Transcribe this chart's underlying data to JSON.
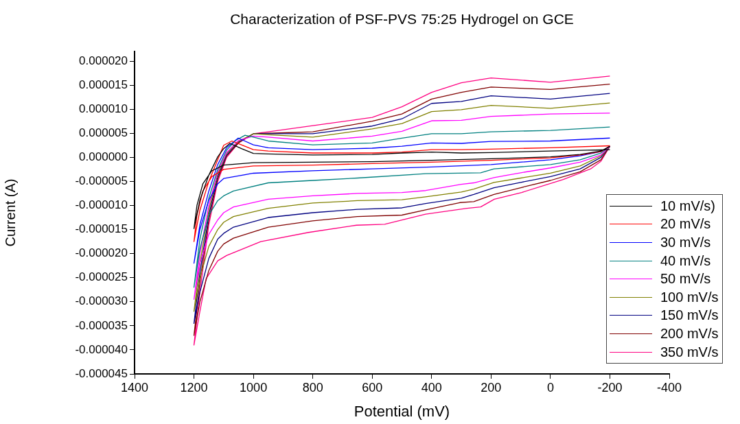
{
  "chart_data": {
    "type": "line",
    "title": "Characterization of PSF-PVS 75:25 Hydrogel on GCE",
    "xlabel": "Potential (mV)",
    "ylabel": "Current (A)",
    "xlim": [
      1400,
      -400
    ],
    "xticks": [
      1400,
      1200,
      1000,
      800,
      600,
      400,
      200,
      0,
      -200,
      -400
    ],
    "ylim": [
      -4.5e-05,
      2.2e-05
    ],
    "yticks": [
      {
        "value": 2e-05,
        "label": "0.000020"
      },
      {
        "value": 1.5e-05,
        "label": "0.000015"
      },
      {
        "value": 1e-05,
        "label": "0.000010"
      },
      {
        "value": 5e-06,
        "label": "0.000005"
      },
      {
        "value": 0,
        "label": "0.000000"
      },
      {
        "value": -5e-06,
        "label": "-0.000005"
      },
      {
        "value": -1e-05,
        "label": "-0.000010"
      },
      {
        "value": -1.5e-05,
        "label": "-0.000015"
      },
      {
        "value": -2e-05,
        "label": "-0.000020"
      },
      {
        "value": -2.5e-05,
        "label": "-0.000025"
      },
      {
        "value": -3e-05,
        "label": "-0.000030"
      },
      {
        "value": -3.5e-05,
        "label": "-0.000035"
      },
      {
        "value": -4e-05,
        "label": "-0.000040"
      },
      {
        "value": -4.5e-05,
        "label": "-0.000045"
      }
    ],
    "legend": "bottom right",
    "marker": "none",
    "line_style": "solid",
    "series": [
      {
        "name": "10 mV/s)",
        "color": "#000000",
        "x": [
          -200,
          0,
          200,
          300,
          400,
          500,
          600,
          800,
          950,
          1000,
          1040,
          1079,
          1100,
          1120,
          1150,
          1180,
          1200,
          1190,
          1170,
          1140,
          1100,
          1000,
          800,
          600,
          400,
          200,
          0,
          -100,
          -170,
          -200
        ],
        "values": [
          1.6e-06,
          1.3e-06,
          1e-06,
          9e-07,
          1.1e-06,
          9e-07,
          6e-07,
          5e-07,
          7e-07,
          8e-07,
          1.8e-06,
          2.9e-06,
          1.8e-06,
          1e-07,
          -3.7e-06,
          -8.9e-06,
          -1.48e-05,
          -1e-05,
          -5.5e-06,
          -2.8e-06,
          -1.6e-06,
          -1.1e-06,
          -1e-06,
          -9e-07,
          -6e-07,
          -3e-07,
          1e-07,
          6e-07,
          1.3e-06,
          2.3e-06
        ]
      },
      {
        "name": "20 mV/s",
        "color": "#ff0000",
        "x": [
          -200,
          0,
          200,
          300,
          400,
          500,
          600,
          800,
          950,
          1000,
          1040,
          1072,
          1100,
          1120,
          1150,
          1180,
          1200,
          1190,
          1170,
          1140,
          1100,
          1000,
          800,
          600,
          400,
          200,
          0,
          -100,
          -170,
          -200
        ],
        "values": [
          2.4e-06,
          2e-06,
          1.7e-06,
          1.6e-06,
          1.6e-06,
          1.1e-06,
          9e-07,
          9e-07,
          1.3e-06,
          1.6e-06,
          2.6e-06,
          3.4e-06,
          2.5e-06,
          -5e-07,
          -5e-06,
          -1.1e-05,
          -1.75e-05,
          -1.2e-05,
          -7e-06,
          -4e-06,
          -2.5e-06,
          -1.8e-06,
          -1.6e-06,
          -1.3e-06,
          -1e-06,
          -6e-07,
          -1e-07,
          5e-07,
          1.2e-06,
          2.3e-06
        ]
      },
      {
        "name": "30 mV/s",
        "color": "#0000ff",
        "x": [
          -200,
          0,
          200,
          300,
          400,
          500,
          600,
          800,
          950,
          1000,
          1051,
          1090,
          1120,
          1150,
          1180,
          1200,
          1180,
          1150,
          1120,
          1100,
          1000,
          800,
          600,
          400,
          200,
          0,
          -100,
          -170,
          -200
        ],
        "values": [
          4e-06,
          3.4e-06,
          3.3e-06,
          2.9e-06,
          3e-06,
          2.3e-06,
          1.9e-06,
          1.6e-06,
          2e-06,
          2.6e-06,
          4e-06,
          2e-06,
          -1.5e-06,
          -7e-06,
          -1.4e-05,
          -2.2e-05,
          -1.5e-05,
          -8.9e-06,
          -5.5e-06,
          -4.4e-06,
          -3.3e-06,
          -2.8e-06,
          -2.4e-06,
          -2e-06,
          -1.5e-06,
          -5e-07,
          3e-07,
          1.2e-06,
          2.3e-06
        ]
      },
      {
        "name": "40 mV/s",
        "color": "#008080",
        "x": [
          -200,
          0,
          200,
          300,
          400,
          500,
          600,
          800,
          950,
          1000,
          1028,
          1060,
          1090,
          1120,
          1150,
          1180,
          1200,
          1180,
          1150,
          1120,
          1100,
          1067,
          950,
          800,
          650,
          420,
          235,
          190,
          0,
          -100,
          -170,
          -200
        ],
        "values": [
          6.3e-06,
          5.6e-06,
          5.3e-06,
          4.9e-06,
          4.9e-06,
          4e-06,
          3e-06,
          2.6e-06,
          3.4e-06,
          4.2e-06,
          4.6e-06,
          3.5e-06,
          1.5e-06,
          -2.5e-06,
          -8.5e-06,
          -1.7e-05,
          -2.7e-05,
          -1.9e-05,
          -1.2e-05,
          -9e-06,
          -8e-06,
          -7e-06,
          -5.3e-06,
          -4.8e-06,
          -4.3e-06,
          -3.4e-06,
          -3.2e-06,
          -2.4e-06,
          -1.5e-06,
          -5e-07,
          9e-07,
          2.3e-06
        ]
      },
      {
        "name": "50 mV/s",
        "color": "#ff00ff",
        "x": [
          -200,
          0,
          200,
          300,
          400,
          500,
          600,
          800,
          950,
          1000,
          1050,
          1090,
          1120,
          1150,
          1180,
          1200,
          1180,
          1150,
          1120,
          1100,
          1067,
          950,
          800,
          650,
          500,
          420,
          300,
          258,
          190,
          100,
          0,
          -100,
          -170,
          -200
        ],
        "values": [
          9.2e-06,
          9e-06,
          8.5e-06,
          7.7e-06,
          7.6e-06,
          5.4e-06,
          4.4e-06,
          3.4e-06,
          4.2e-06,
          4.4e-06,
          3.5e-06,
          1e-06,
          -3e-06,
          -1e-05,
          -2e-05,
          -2.95e-05,
          -2.2e-05,
          -1.6e-05,
          -1.3e-05,
          -1.15e-05,
          -1.03e-05,
          -8.7e-06,
          -8e-06,
          -7.5e-06,
          -7.3e-06,
          -6.9e-06,
          -5.6e-06,
          -5.3e-06,
          -4.2e-06,
          -3.2e-06,
          -2.2e-06,
          -1e-06,
          5e-07,
          2.3e-06
        ]
      },
      {
        "name": "100 mV/s",
        "color": "#808000",
        "x": [
          -200,
          0,
          200,
          300,
          400,
          500,
          600,
          800,
          950,
          1000,
          1050,
          1090,
          1120,
          1150,
          1180,
          1200,
          1180,
          1150,
          1120,
          1100,
          1067,
          950,
          800,
          650,
          500,
          420,
          300,
          258,
          190,
          100,
          0,
          -100,
          -170,
          -200
        ],
        "values": [
          1.13e-05,
          1.02e-05,
          1.08e-05,
          9.9e-06,
          9.5e-06,
          7e-06,
          5.9e-06,
          4.2e-06,
          4.7e-06,
          4.9e-06,
          3.3e-06,
          8e-07,
          -3.5e-06,
          -1.1e-05,
          -2.2e-05,
          -3.2e-05,
          -2.5e-05,
          -1.85e-05,
          -1.5e-05,
          -1.35e-05,
          -1.23e-05,
          -1.06e-05,
          -9.5e-06,
          -9e-06,
          -8.8e-06,
          -8.2e-06,
          -7.2e-06,
          -6.6e-06,
          -5.2e-06,
          -4.3e-06,
          -3.3e-06,
          -1.8e-06,
          3e-07,
          2.3e-06
        ]
      },
      {
        "name": "150 mV/s",
        "color": "#000080",
        "x": [
          -200,
          0,
          200,
          300,
          400,
          500,
          600,
          800,
          950,
          1000,
          1050,
          1090,
          1120,
          1150,
          1180,
          1200,
          1180,
          1150,
          1120,
          1100,
          1067,
          950,
          800,
          650,
          500,
          420,
          300,
          258,
          190,
          100,
          0,
          -100,
          -170,
          -200
        ],
        "values": [
          1.33e-05,
          1.21e-05,
          1.28e-05,
          1.16e-05,
          1.12e-05,
          8e-06,
          6.5e-06,
          4.9e-06,
          4.9e-06,
          4.9e-06,
          3.2e-06,
          5e-07,
          -4e-06,
          -1.2e-05,
          -2.4e-05,
          -3.45e-05,
          -2.8e-05,
          -2.1e-05,
          -1.7e-05,
          -1.58e-05,
          -1.45e-05,
          -1.25e-05,
          -1.15e-05,
          -1.08e-05,
          -1.05e-05,
          -9.6e-06,
          -8.5e-06,
          -7.7e-06,
          -6.3e-06,
          -5.2e-06,
          -4e-06,
          -2.4e-06,
          0,
          2.3e-06
        ]
      },
      {
        "name": "200 mV/s",
        "color": "#800000",
        "x": [
          -200,
          0,
          200,
          300,
          400,
          500,
          600,
          800,
          950,
          1000,
          1050,
          1090,
          1120,
          1150,
          1180,
          1200,
          1180,
          1150,
          1120,
          1100,
          1067,
          950,
          800,
          650,
          500,
          420,
          305,
          258,
          190,
          100,
          0,
          -100,
          -170,
          -200
        ],
        "values": [
          1.52e-05,
          1.41e-05,
          1.46e-05,
          1.35e-05,
          1.21e-05,
          9e-06,
          7.5e-06,
          5.3e-06,
          5e-06,
          4.9e-06,
          3e-06,
          3e-07,
          -4.5e-06,
          -1.3e-05,
          -2.6e-05,
          -3.7e-05,
          -3e-05,
          -2.35e-05,
          -1.95e-05,
          -1.8e-05,
          -1.68e-05,
          -1.45e-05,
          -1.32e-05,
          -1.23e-05,
          -1.2e-05,
          -1.09e-05,
          -9.4e-06,
          -9.2e-06,
          -7.7e-06,
          -6.3e-06,
          -4.8e-06,
          -3e-06,
          -5e-07,
          2.3e-06
        ]
      },
      {
        "name": "350 mV/s",
        "color": "#ff0080",
        "x": [
          -200,
          0,
          200,
          300,
          400,
          500,
          600,
          800,
          950,
          1000,
          1050,
          1090,
          1120,
          1150,
          1180,
          1200,
          1180,
          1159,
          1120,
          1090,
          975,
          814,
          653,
          558,
          420,
          281,
          235,
          189,
          97,
          -43,
          -135,
          -170,
          -200
        ],
        "values": [
          1.69e-05,
          1.56e-05,
          1.65e-05,
          1.55e-05,
          1.35e-05,
          1.05e-05,
          8.3e-06,
          6.6e-06,
          5.3e-06,
          4.9e-06,
          3e-06,
          0,
          -5e-06,
          -1.4e-05,
          -2.8e-05,
          -3.9e-05,
          -3.2e-05,
          -2.52e-05,
          -2.15e-05,
          -2.04e-05,
          -1.75e-05,
          -1.56e-05,
          -1.41e-05,
          -1.39e-05,
          -1.18e-05,
          -1.06e-05,
          -1.03e-05,
          -8.7e-06,
          -7.3e-06,
          -4.6e-06,
          -2.4e-06,
          -8e-07,
          2.3e-06
        ]
      }
    ]
  }
}
